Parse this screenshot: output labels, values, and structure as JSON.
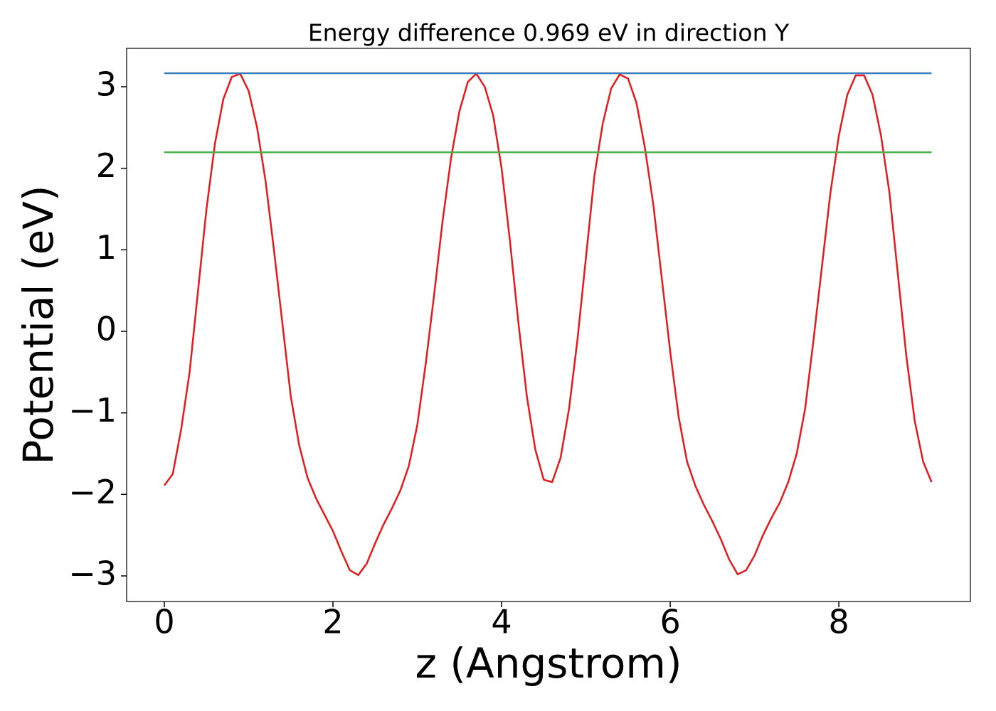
{
  "chart_data": {
    "type": "line",
    "title": "Energy difference 0.969 eV in direction Y",
    "x_label": "z (Angstrom)",
    "y_label": "Potential (eV)",
    "xlim": [
      -0.447,
      9.56
    ],
    "ylim": [
      -3.314,
      3.471
    ],
    "xticks": [
      0,
      2,
      4,
      6,
      8
    ],
    "yticks": [
      {
        "value": -3,
        "label": "−3"
      },
      {
        "value": -2,
        "label": "−2"
      },
      {
        "value": -1,
        "label": "−1"
      },
      0,
      1,
      2,
      3
    ],
    "grid": false,
    "series": [
      {
        "color": "#e41a1c",
        "x": [
          0,
          0.1,
          0.2,
          0.3,
          0.4,
          0.5,
          0.6,
          0.7,
          0.8,
          0.9,
          1.0,
          1.1,
          1.2,
          1.3,
          1.4,
          1.5,
          1.6,
          1.7,
          1.8,
          1.9,
          2.0,
          2.1,
          2.2,
          2.3,
          2.4,
          2.5,
          2.6,
          2.7,
          2.8,
          2.9,
          3.0,
          3.1,
          3.2,
          3.3,
          3.4,
          3.5,
          3.6,
          3.7,
          3.8,
          3.9,
          4.0,
          4.1,
          4.2,
          4.3,
          4.4,
          4.5,
          4.6,
          4.7,
          4.8,
          4.9,
          5.0,
          5.1,
          5.2,
          5.3,
          5.4,
          5.5,
          5.6,
          5.7,
          5.8,
          5.9,
          6.0,
          6.1,
          6.2,
          6.3,
          6.4,
          6.5,
          6.6,
          6.7,
          6.8,
          6.9,
          7.0,
          7.1,
          7.2,
          7.3,
          7.4,
          7.5,
          7.6,
          7.7,
          7.8,
          7.9,
          8.0,
          8.1,
          8.2,
          8.3,
          8.4,
          8.5,
          8.6,
          8.7,
          8.8,
          8.9,
          9.0,
          9.1
        ],
        "values": [
          -1.89,
          -1.75,
          -1.2,
          -0.5,
          0.5,
          1.5,
          2.3,
          2.85,
          3.12,
          3.16,
          2.95,
          2.5,
          1.85,
          1.0,
          0.1,
          -0.8,
          -1.4,
          -1.8,
          -2.05,
          -2.25,
          -2.45,
          -2.7,
          -2.93,
          -2.99,
          -2.85,
          -2.6,
          -2.37,
          -2.17,
          -1.95,
          -1.65,
          -1.15,
          -0.4,
          0.45,
          1.35,
          2.12,
          2.7,
          3.06,
          3.16,
          3.0,
          2.65,
          2.0,
          1.1,
          0.1,
          -0.8,
          -1.45,
          -1.82,
          -1.85,
          -1.55,
          -0.95,
          -0.1,
          0.9,
          1.9,
          2.55,
          2.98,
          3.15,
          3.1,
          2.8,
          2.25,
          1.55,
          0.65,
          -0.25,
          -1.05,
          -1.6,
          -1.9,
          -2.13,
          -2.33,
          -2.55,
          -2.8,
          -2.98,
          -2.93,
          -2.75,
          -2.5,
          -2.29,
          -2.1,
          -1.85,
          -1.5,
          -0.95,
          -0.1,
          0.8,
          1.7,
          2.4,
          2.9,
          3.14,
          3.14,
          2.9,
          2.4,
          1.7,
          0.7,
          -0.3,
          -1.1,
          -1.6,
          -1.85
        ]
      },
      {
        "color": "#377eb8",
        "x": [
          0,
          9.1
        ],
        "values": [
          3.166,
          3.166
        ]
      },
      {
        "color": "#4daf4a",
        "x": [
          0,
          9.1
        ],
        "values": [
          2.197,
          2.197
        ]
      }
    ]
  }
}
